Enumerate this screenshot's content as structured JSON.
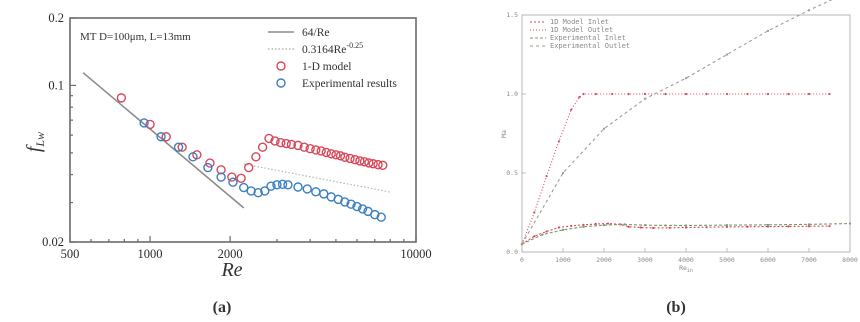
{
  "chart_data": [
    {
      "type": "scatter",
      "panel_label": "(a)",
      "annotation": "MT D=100μm, L=13mm",
      "xlabel": "Re",
      "ylabel": "f",
      "ylabel_sub": "Lw",
      "xscale": "log",
      "yscale": "log",
      "xlim": [
        500,
        10000
      ],
      "ylim": [
        0.02,
        0.2
      ],
      "xticks": [
        500,
        1000,
        2000,
        10000
      ],
      "xtick_labels": [
        "500",
        "1000",
        "2000",
        "10000"
      ],
      "yticks": [
        0.02,
        0.1,
        0.2
      ],
      "ytick_labels": [
        "0.02",
        "0.1",
        "0.2"
      ],
      "legend_position": "top-right",
      "series": [
        {
          "name": "64/Re",
          "kind": "line",
          "color": "#8c8c8c",
          "x": [
            560,
            2250
          ],
          "y": [
            0.114,
            0.0284
          ]
        },
        {
          "name": "0.3164Re",
          "name_sup": "-0.25",
          "kind": "dotted",
          "color": "#b5b5b5",
          "x": [
            2250,
            8000
          ],
          "y": [
            0.0446,
            0.0334
          ]
        },
        {
          "name": "1-D model",
          "kind": "marker",
          "color": "#d9485a",
          "x": [
            780,
            1000,
            1150,
            1320,
            1500,
            1680,
            1850,
            2030,
            2200,
            2350,
            2500,
            2650,
            2800,
            2950,
            3100,
            3250,
            3400,
            3600,
            3800,
            4000,
            4200,
            4400,
            4600,
            4800,
            5000,
            5200,
            5400,
            5650,
            5900,
            6150,
            6400,
            6650,
            6900,
            7200,
            7500
          ],
          "y": [
            0.088,
            0.067,
            0.059,
            0.053,
            0.049,
            0.045,
            0.042,
            0.039,
            0.0385,
            0.043,
            0.048,
            0.053,
            0.058,
            0.0565,
            0.0555,
            0.055,
            0.0545,
            0.054,
            0.053,
            0.0522,
            0.0515,
            0.051,
            0.0502,
            0.0495,
            0.049,
            0.0485,
            0.0478,
            0.0472,
            0.0466,
            0.046,
            0.0456,
            0.0451,
            0.0447,
            0.0443,
            0.044
          ]
        },
        {
          "name": "Experimental results",
          "kind": "marker",
          "color": "#3a7fc1",
          "x": [
            950,
            1100,
            1280,
            1450,
            1650,
            1850,
            2050,
            2250,
            2400,
            2550,
            2700,
            2850,
            3000,
            3150,
            3300,
            3600,
            3900,
            4200,
            4500,
            4800,
            5100,
            5400,
            5700,
            6000,
            6300,
            6600,
            7000,
            7400
          ],
          "y": [
            0.068,
            0.059,
            0.053,
            0.048,
            0.043,
            0.039,
            0.037,
            0.035,
            0.0338,
            0.0332,
            0.0338,
            0.0355,
            0.036,
            0.0362,
            0.036,
            0.0352,
            0.0345,
            0.0335,
            0.0328,
            0.0318,
            0.031,
            0.0302,
            0.0295,
            0.0288,
            0.0281,
            0.0274,
            0.0265,
            0.0258
          ]
        }
      ]
    },
    {
      "type": "line",
      "panel_label": "(b)",
      "xlabel": "Re",
      "xlabel_sub": "in",
      "ylabel": "Ma",
      "xlim": [
        0,
        8000
      ],
      "ylim": [
        0,
        1.5
      ],
      "xticks": [
        0,
        1000,
        2000,
        3000,
        4000,
        5000,
        6000,
        7000,
        8000
      ],
      "xtick_labels": [
        "0",
        "1000",
        "2000",
        "3000",
        "4000",
        "5000",
        "6000",
        "7000",
        "8000"
      ],
      "yticks": [
        0,
        0.5,
        1.0,
        1.5
      ],
      "ytick_labels": [
        "0.0",
        "0.5",
        "1.0",
        "1.5"
      ],
      "legend_position": "top-left",
      "series": [
        {
          "name": "1D Model Inlet",
          "color": "#d9485a",
          "dash": "2,2",
          "x": [
            0,
            300,
            600,
            900,
            1200,
            1500,
            1800,
            2100,
            2400,
            2600,
            2900,
            3200,
            3600,
            4000,
            4500,
            5000,
            5500,
            6000,
            6500,
            7000,
            7500
          ],
          "y": [
            0.05,
            0.1,
            0.13,
            0.155,
            0.165,
            0.172,
            0.177,
            0.18,
            0.175,
            0.16,
            0.155,
            0.152,
            0.153,
            0.155,
            0.157,
            0.159,
            0.16,
            0.161,
            0.162,
            0.163,
            0.164
          ]
        },
        {
          "name": "1D Model Outlet",
          "color": "#d9485a",
          "dash": "1,2",
          "x": [
            0,
            300,
            600,
            900,
            1200,
            1400,
            1500,
            1800,
            2200,
            2600,
            3000,
            3500,
            4000,
            4500,
            5000,
            5500,
            6000,
            6500,
            7000,
            7500
          ],
          "y": [
            0.05,
            0.25,
            0.48,
            0.7,
            0.9,
            0.98,
            1.0,
            1.0,
            1.0,
            1.0,
            1.0,
            1.0,
            1.0,
            1.0,
            1.0,
            1.0,
            1.0,
            1.0,
            1.0,
            1.0
          ]
        },
        {
          "name": "Experimental Inlet",
          "color": "#7a9a6a",
          "dash": "3,2",
          "x": [
            0,
            500,
            1000,
            1500,
            2000,
            2500,
            3000,
            3500,
            4000,
            5000,
            6000,
            7000,
            8000
          ],
          "y": [
            0.05,
            0.11,
            0.14,
            0.16,
            0.17,
            0.175,
            0.17,
            0.168,
            0.168,
            0.17,
            0.172,
            0.175,
            0.18
          ]
        },
        {
          "name": "Experimental Outlet",
          "color": "#9a9a9a",
          "dash": "3,3",
          "x": [
            0,
            1000,
            2000,
            3000,
            4000,
            5000,
            6000,
            7000,
            8000
          ],
          "y": [
            0.05,
            0.5,
            0.78,
            0.97,
            1.1,
            1.25,
            1.4,
            1.53,
            1.65
          ]
        }
      ]
    }
  ]
}
